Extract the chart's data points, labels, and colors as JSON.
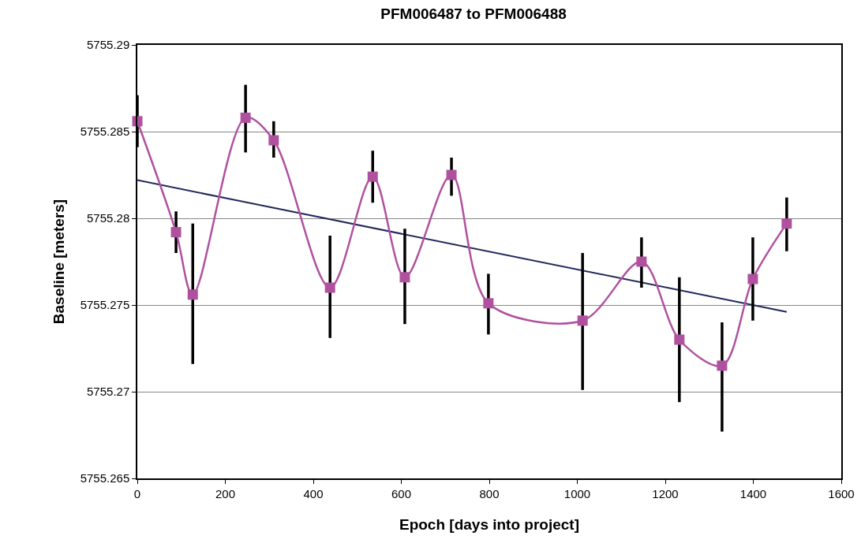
{
  "chart_data": {
    "type": "line",
    "title": "PFM006487 to PFM006488",
    "xlabel": "Epoch [days into project]",
    "ylabel": "Baseline [meters]",
    "xlim": [
      0,
      1600
    ],
    "xticks": [
      0,
      200,
      400,
      600,
      800,
      1000,
      1200,
      1400,
      1600
    ],
    "ylim": [
      5755.265,
      5755.29
    ],
    "yticks": [
      5755.265,
      5755.27,
      5755.275,
      5755.28,
      5755.285,
      5755.29
    ],
    "grid": "y",
    "series": [
      {
        "color": "#b0519f",
        "marker": "square",
        "line_style": "solid",
        "x": [
          0,
          88,
          126,
          246,
          310,
          438,
          535,
          608,
          714,
          798,
          1012,
          1146,
          1232,
          1329,
          1399,
          1476
        ],
        "values": [
          5755.2856,
          5755.2792,
          5755.2756,
          5755.2858,
          5755.2845,
          5755.276,
          5755.2824,
          5755.2766,
          5755.2825,
          5755.2751,
          5755.2741,
          5755.2775,
          5755.273,
          5755.2715,
          5755.2765,
          5755.2797
        ],
        "errors": [
          [
            5755.2841,
            5755.2871
          ],
          [
            5755.278,
            5755.2804
          ],
          [
            5755.2716,
            5755.2797
          ],
          [
            5755.2838,
            5755.2877
          ],
          [
            5755.2835,
            5755.2856
          ],
          [
            5755.2731,
            5755.279
          ],
          [
            5755.2809,
            5755.2839
          ],
          [
            5755.2739,
            5755.2794
          ],
          [
            5755.2813,
            5755.2835
          ],
          [
            5755.2733,
            5755.2768
          ],
          [
            5755.2701,
            5755.278
          ],
          [
            5755.276,
            5755.2789
          ],
          [
            5755.2694,
            5755.2766
          ],
          [
            5755.2677,
            5755.274
          ],
          [
            5755.2741,
            5755.2789
          ],
          [
            5755.2781,
            5755.2812
          ]
        ]
      },
      {
        "color": "#1f2a5a",
        "marker": "none",
        "line_style": "solid",
        "x": [
          0,
          1476
        ],
        "values": [
          5755.2822,
          5755.2746
        ]
      }
    ]
  }
}
